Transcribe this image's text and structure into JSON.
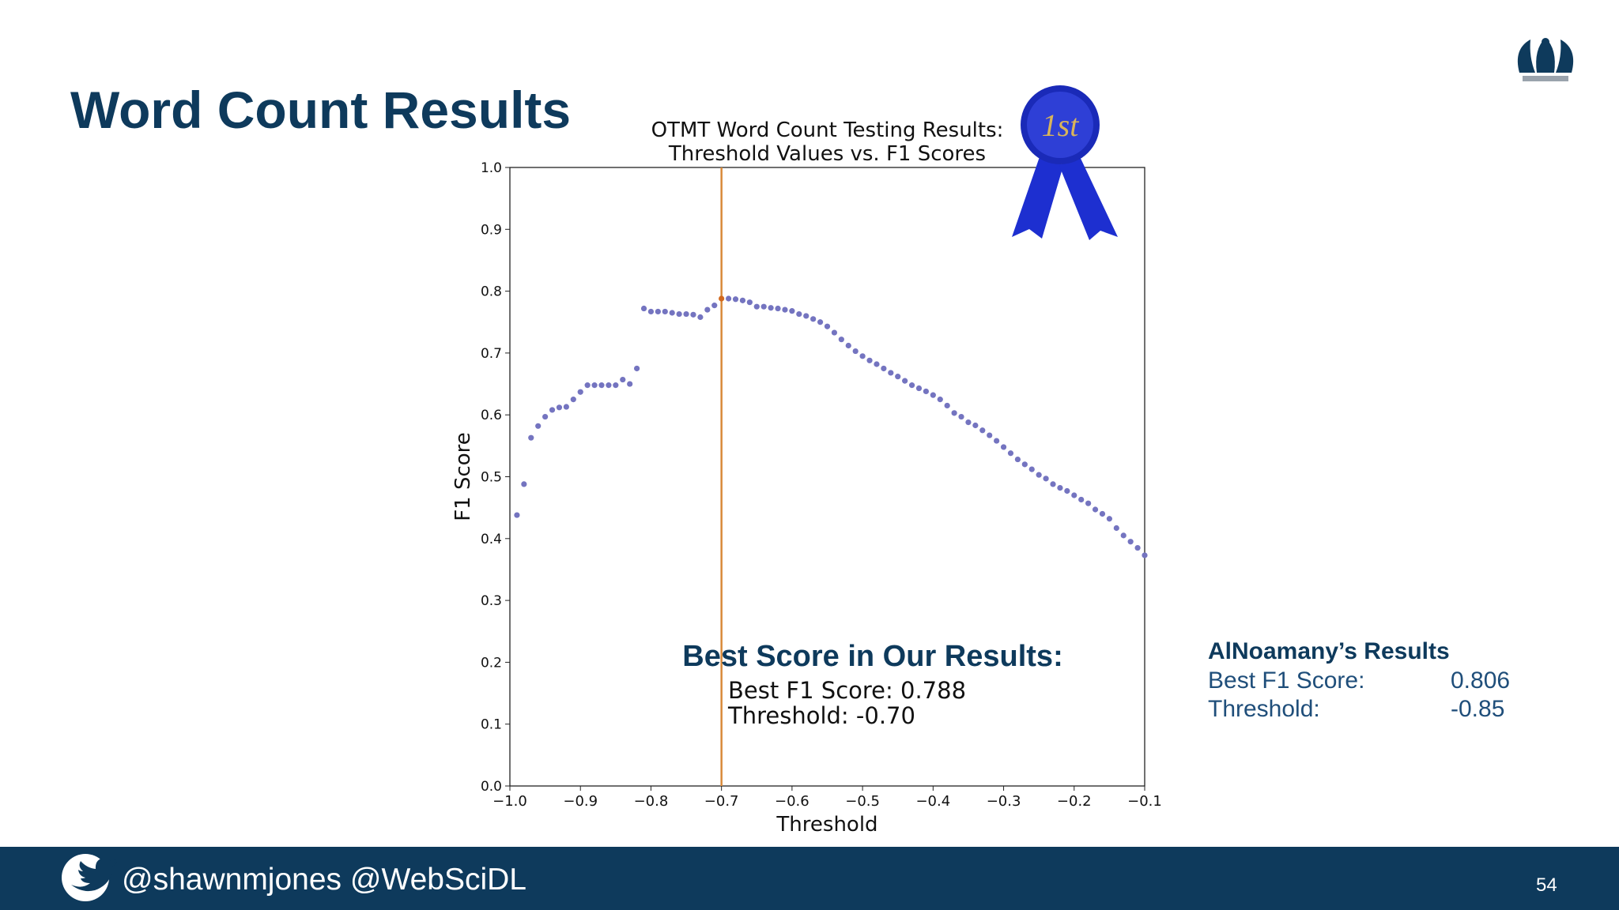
{
  "slide": {
    "title": "Word Count Results",
    "footer": "@shawnmjones @WebSciDL",
    "page_number": "54",
    "ribbon": "1st",
    "comparison": {
      "heading": "AlNoamany’s Results",
      "rows": [
        [
          "Best F1 Score:",
          "0.806"
        ],
        [
          "Threshold:",
          "-0.85"
        ]
      ]
    }
  },
  "chart_data": {
    "type": "scatter",
    "title": [
      "OTMT Word Count Testing Results:",
      "Threshold Values vs. F1 Scores"
    ],
    "x_label": "Threshold",
    "y_label": "F1 Score",
    "annotation_heading": "Best Score in Our Results:",
    "annotations": [
      "Best F1 Score: 0.788",
      "Threshold: -0.70"
    ],
    "color": "#7474c0",
    "highlight_color": "#d2691e",
    "vline": -0.7,
    "vline_color": "#d98a3a",
    "xlim": [
      -1.0,
      -0.1
    ],
    "ylim": [
      0,
      1
    ],
    "xticks": [
      {
        "value": -1.0,
        "label": "−1.0"
      },
      {
        "value": -0.9,
        "label": "−0.9"
      },
      {
        "value": -0.8,
        "label": "−0.8"
      },
      {
        "value": -0.7,
        "label": "−0.7"
      },
      {
        "value": -0.6,
        "label": "−0.6"
      },
      {
        "value": -0.5,
        "label": "−0.5"
      },
      {
        "value": -0.4,
        "label": "−0.4"
      },
      {
        "value": -0.3,
        "label": "−0.3"
      },
      {
        "value": -0.2,
        "label": "−0.2"
      },
      {
        "value": -0.1,
        "label": "−0.1"
      }
    ],
    "yticks": [
      {
        "value": 0,
        "label": "0.0"
      },
      0.1,
      0.2,
      0.3,
      0.4,
      0.5,
      0.6,
      0.7,
      0.8,
      0.9,
      {
        "value": 1,
        "label": "1.0"
      }
    ],
    "x": [
      -0.99,
      -0.98,
      -0.97,
      -0.96,
      -0.95,
      -0.94,
      -0.93,
      -0.92,
      -0.91,
      -0.9,
      -0.89,
      -0.88,
      -0.87,
      -0.86,
      -0.85,
      -0.84,
      -0.83,
      -0.82,
      -0.81,
      -0.8,
      -0.79,
      -0.78,
      -0.77,
      -0.76,
      -0.75,
      -0.74,
      -0.73,
      -0.72,
      -0.71,
      -0.7,
      -0.69,
      -0.68,
      -0.67,
      -0.66,
      -0.65,
      -0.64,
      -0.63,
      -0.62,
      -0.61,
      -0.6,
      -0.59,
      -0.58,
      -0.57,
      -0.56,
      -0.55,
      -0.54,
      -0.53,
      -0.52,
      -0.51,
      -0.5,
      -0.49,
      -0.48,
      -0.47,
      -0.46,
      -0.45,
      -0.44,
      -0.43,
      -0.42,
      -0.41,
      -0.4,
      -0.39,
      -0.38,
      -0.37,
      -0.36,
      -0.35,
      -0.34,
      -0.33,
      -0.32,
      -0.31,
      -0.3,
      -0.29,
      -0.28,
      -0.27,
      -0.26,
      -0.25,
      -0.24,
      -0.23,
      -0.22,
      -0.21,
      -0.2,
      -0.19,
      -0.18,
      -0.17,
      -0.16,
      -0.15,
      -0.14,
      -0.13,
      -0.12,
      -0.11,
      -0.1
    ],
    "values": [
      0.438,
      0.488,
      0.563,
      0.582,
      0.597,
      0.608,
      0.612,
      0.613,
      0.625,
      0.637,
      0.648,
      0.648,
      0.648,
      0.648,
      0.648,
      0.657,
      0.65,
      0.675,
      0.772,
      0.767,
      0.767,
      0.767,
      0.765,
      0.763,
      0.763,
      0.762,
      0.758,
      0.77,
      0.777,
      0.788,
      0.788,
      0.787,
      0.785,
      0.782,
      0.775,
      0.775,
      0.773,
      0.772,
      0.77,
      0.768,
      0.763,
      0.76,
      0.755,
      0.75,
      0.743,
      0.733,
      0.722,
      0.712,
      0.703,
      0.695,
      0.688,
      0.682,
      0.675,
      0.668,
      0.662,
      0.655,
      0.648,
      0.643,
      0.638,
      0.632,
      0.625,
      0.615,
      0.603,
      0.597,
      0.588,
      0.583,
      0.575,
      0.567,
      0.558,
      0.548,
      0.538,
      0.528,
      0.52,
      0.512,
      0.503,
      0.497,
      0.488,
      0.482,
      0.477,
      0.47,
      0.463,
      0.457,
      0.447,
      0.44,
      0.432,
      0.417,
      0.405,
      0.395,
      0.385,
      0.373
    ]
  }
}
